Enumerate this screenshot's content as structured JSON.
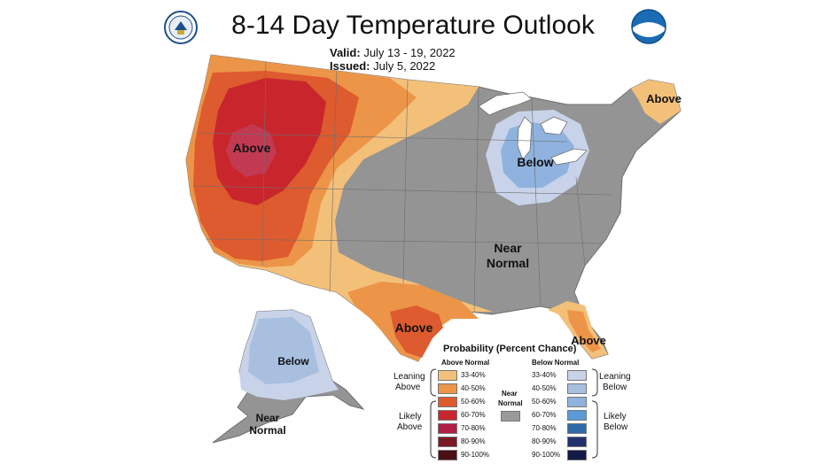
{
  "header": {
    "title": "8-14 Day Temperature Outlook",
    "valid_label": "Valid:",
    "valid_value": "July 13 - 19, 2022",
    "issued_label": "Issued:",
    "issued_value": "July 5, 2022"
  },
  "logos": {
    "left": "commerce-seal-icon",
    "right": "noaa-logo-icon"
  },
  "map_labels": {
    "west": "Above",
    "northeast": "Above",
    "great_lakes": "Below",
    "central_1": "Near",
    "central_2": "Normal",
    "texas": "Above",
    "florida": "Above",
    "alaska": "Below",
    "alaska_south_1": "Near",
    "alaska_south_2": "Normal"
  },
  "legend": {
    "title": "Probability (Percent Chance)",
    "above_header": "Above Normal",
    "below_header": "Below Normal",
    "near_label_1": "Near",
    "near_label_2": "Normal",
    "leaning_above_1": "Leaning",
    "leaning_above_2": "Above",
    "likely_above_1": "Likely",
    "likely_above_2": "Above",
    "leaning_below_1": "Leaning",
    "leaning_below_2": "Below",
    "likely_below_1": "Likely",
    "likely_below_2": "Below",
    "above_bins": [
      "33-40%",
      "40-50%",
      "50-60%",
      "60-70%",
      "70-80%",
      "80-90%",
      "90-100%"
    ],
    "below_bins": [
      "33-40%",
      "40-50%",
      "50-60%",
      "60-70%",
      "70-80%",
      "80-90%",
      "90-100%"
    ],
    "above_colors": [
      "#f3c07a",
      "#ec9548",
      "#dd5b2e",
      "#c8262c",
      "#b01e45",
      "#7a1a25",
      "#4a1015"
    ],
    "below_colors": [
      "#c8d3ea",
      "#a8bfe0",
      "#8fb3de",
      "#5b9ad6",
      "#2e6aa8",
      "#22306e",
      "#141a48"
    ],
    "near_color": "#9a9a9a"
  }
}
